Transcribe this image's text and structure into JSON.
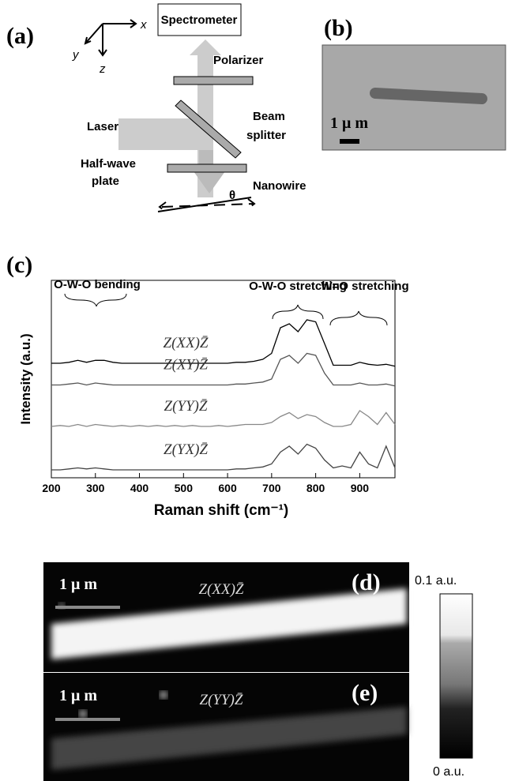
{
  "panel_a": {
    "label": "(a)",
    "axes": [
      "x",
      "y",
      "z"
    ],
    "spectrometer": "Spectrometer",
    "polarizer": "Polarizer",
    "beam_splitter": [
      "Beam",
      "splitter"
    ],
    "laser": "Laser",
    "half_wave_plate": [
      "Half-wave",
      "plate"
    ],
    "nanowire": "Nanowire",
    "angle": "θ"
  },
  "panel_b": {
    "label": "(b)",
    "scale_label": "1 μ m"
  },
  "panel_c_label": "(c)",
  "chart_data": {
    "type": "line",
    "x_label": "Raman shift (cm⁻¹)",
    "y_label": "Intensity (a.u.)",
    "annotations": [
      "O-W-O bending",
      "O-W-O stretching",
      "W=O stretching"
    ],
    "x": [
      200,
      220,
      240,
      260,
      280,
      300,
      320,
      340,
      360,
      380,
      400,
      420,
      440,
      460,
      480,
      500,
      520,
      540,
      560,
      580,
      600,
      620,
      640,
      660,
      680,
      700,
      720,
      740,
      760,
      780,
      800,
      820,
      840,
      860,
      880,
      900,
      920,
      940,
      960,
      980
    ],
    "xlim": [
      200,
      980
    ],
    "xticks": [
      200,
      300,
      400,
      500,
      600,
      700,
      800,
      900
    ],
    "ylim": [
      0,
      100
    ],
    "series": [
      {
        "name": "Z(XX)Z̄",
        "color": "#000000",
        "values": [
          58,
          58,
          58.5,
          59.5,
          58.5,
          59.5,
          59.5,
          58.5,
          58,
          58,
          58,
          58,
          58,
          58,
          58,
          58,
          58,
          58,
          58,
          58,
          58,
          58.5,
          58.5,
          59,
          60,
          63,
          76,
          78,
          74,
          80,
          79,
          68,
          57,
          57,
          57,
          58.5,
          57.5,
          57,
          57.5,
          56.5
        ]
      },
      {
        "name": "Z(XY)Z̄",
        "color": "#555555",
        "values": [
          47,
          47,
          47.5,
          48,
          47,
          48,
          47.5,
          47,
          47,
          47,
          47,
          47,
          47,
          47,
          47,
          47,
          47,
          47,
          47,
          47,
          47,
          47.5,
          47.5,
          48,
          48.5,
          50,
          60,
          62,
          58,
          63,
          62,
          53,
          47,
          47,
          47,
          48,
          47,
          47,
          47.5,
          46.5
        ]
      },
      {
        "name": "Z(YY)Z̄",
        "color": "#888888",
        "values": [
          26,
          26.5,
          26,
          27,
          26,
          27,
          26.5,
          26,
          26.5,
          26,
          26.5,
          26,
          26.5,
          26,
          26.5,
          26,
          26.5,
          26,
          26,
          26.5,
          26,
          26.5,
          27,
          27,
          27,
          28,
          31,
          33,
          30,
          32,
          31,
          28,
          26,
          26,
          27,
          34,
          31,
          27,
          33,
          27
        ]
      },
      {
        "name": "Z(YX)Z̄",
        "color": "#444444",
        "values": [
          4,
          4,
          4.5,
          5,
          4.5,
          5,
          4.5,
          4,
          4,
          4,
          4,
          4,
          4,
          4,
          4,
          4,
          4,
          4,
          4,
          4,
          4,
          4.5,
          4.5,
          5,
          5.5,
          7,
          13,
          16,
          12,
          17,
          15,
          9,
          5,
          6,
          5,
          13,
          7,
          5,
          16,
          5
        ]
      }
    ]
  },
  "panel_d": {
    "label": "(d)",
    "scale_label": "1 μ m",
    "polarization": "Z(XX)Z̄"
  },
  "panel_e": {
    "label": "(e)",
    "scale_label": "1 μ m",
    "polarization": "Z(YY)Z̄"
  },
  "colorbar": {
    "max_label": "0.1 a.u.",
    "min_label": "0 a.u."
  }
}
